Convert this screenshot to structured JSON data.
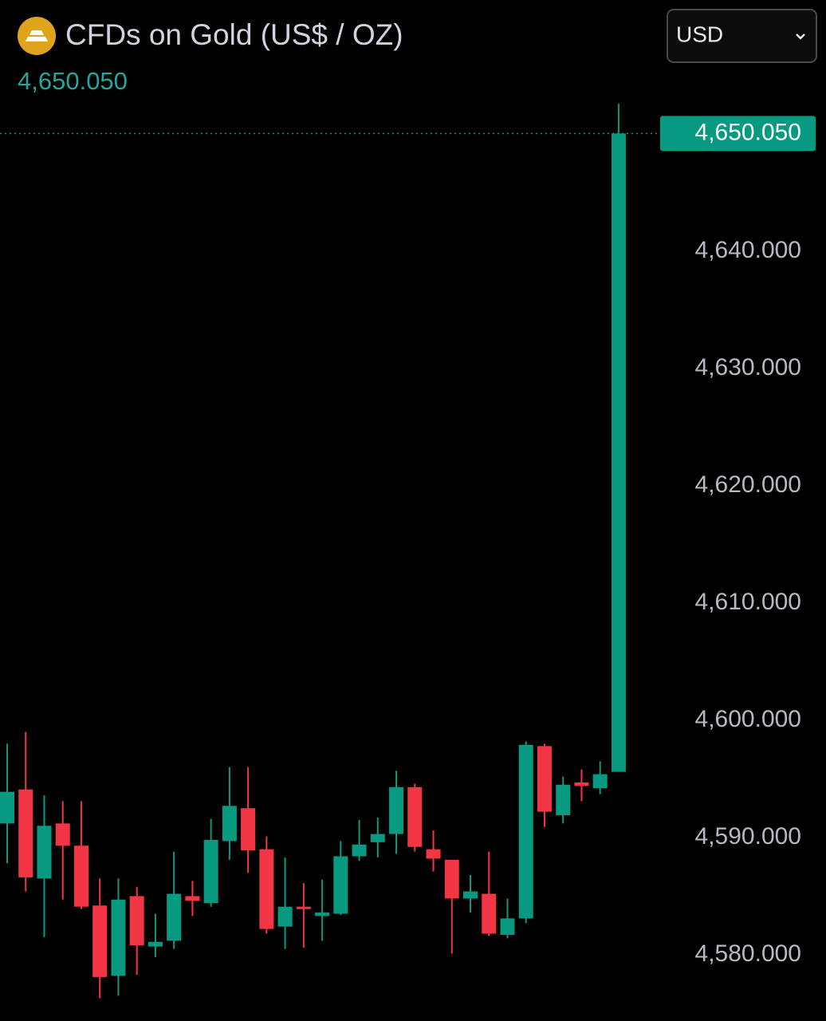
{
  "header": {
    "title": "CFDs on Gold (US$ / OZ)",
    "currency": "USD"
  },
  "chart_data": {
    "type": "candlestick",
    "up_color": "#089981",
    "down_color": "#f23645",
    "open": [
      4591.2,
      4594.1,
      4586.5,
      4591.2,
      4589.3,
      4584.2,
      4578.2,
      4585.0,
      4580.7,
      4581.2,
      4585.0,
      4584.4,
      4589.7,
      4592.5,
      4589.0,
      4582.4,
      4584.1,
      4583.3,
      4583.5,
      4588.4,
      4589.6,
      4590.3,
      4594.3,
      4589.0,
      4588.1,
      4584.8,
      4585.2,
      4581.7,
      4583.1,
      4597.8,
      4591.9,
      4594.7,
      4594.2,
      4595.6
    ],
    "high": [
      4598.0,
      4599.0,
      4593.6,
      4593.1,
      4593.1,
      4586.5,
      4586.5,
      4585.8,
      4583.5,
      4588.8,
      4586.3,
      4591.6,
      4596.0,
      4596.0,
      4590.1,
      4588.3,
      4586.1,
      4586.4,
      4589.7,
      4591.5,
      4591.7,
      4595.7,
      4594.6,
      4590.6,
      4588.1,
      4586.8,
      4588.8,
      4584.8,
      4598.2,
      4598.0,
      4595.2,
      4595.8,
      4596.5,
      4652.6
    ],
    "low": [
      4587.8,
      4585.4,
      4581.5,
      4584.7,
      4583.9,
      4576.3,
      4576.5,
      4578.3,
      4579.8,
      4580.5,
      4583.3,
      4584.1,
      4588.1,
      4587.0,
      4581.8,
      4580.5,
      4580.6,
      4581.2,
      4583.4,
      4588.0,
      4588.3,
      4588.6,
      4588.8,
      4587.1,
      4580.1,
      4583.6,
      4581.6,
      4581.4,
      4582.7,
      4590.9,
      4591.2,
      4593.1,
      4593.7,
      4595.6
    ],
    "close": [
      4593.9,
      4586.6,
      4591.0,
      4589.3,
      4584.1,
      4578.1,
      4584.7,
      4580.8,
      4581.1,
      4585.2,
      4584.6,
      4589.8,
      4592.7,
      4588.9,
      4582.2,
      4584.1,
      4583.9,
      4583.6,
      4588.4,
      4589.4,
      4590.3,
      4594.3,
      4589.2,
      4588.2,
      4584.8,
      4585.4,
      4581.8,
      4583.1,
      4597.9,
      4592.2,
      4594.5,
      4594.4,
      4595.4,
      4650.05
    ],
    "last_price": {
      "value": 4650.05,
      "label": "4,650.050"
    },
    "ylim": [
      4574.35,
      4653.27
    ],
    "yticks": [
      {
        "value": 4580,
        "label": "4,580.000"
      },
      {
        "value": 4590,
        "label": "4,590.000"
      },
      {
        "value": 4600,
        "label": "4,600.000"
      },
      {
        "value": 4610,
        "label": "4,610.000"
      },
      {
        "value": 4620,
        "label": "4,620.000"
      },
      {
        "value": 4630,
        "label": "4,630.000"
      },
      {
        "value": 4640,
        "label": "4,640.000"
      }
    ]
  }
}
